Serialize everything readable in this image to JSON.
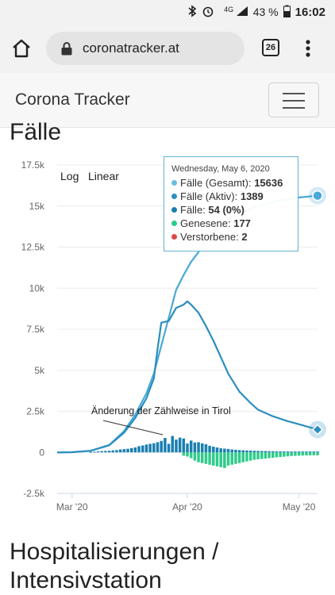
{
  "status_bar": {
    "network": "4G",
    "battery": "43 %",
    "time": "16:02"
  },
  "browser": {
    "url": "coronatracker.at",
    "tab_count": "26"
  },
  "navbar": {
    "brand": "Corona Tracker"
  },
  "section": {
    "partial_title": "Fälle",
    "next_title": "Hospitalisierungen / Intensivstation"
  },
  "chart_controls": {
    "log_label": "Log",
    "linear_label": "Linear"
  },
  "tooltip": {
    "date": "Wednesday, May 6, 2020",
    "rows": [
      {
        "label": "Fälle (Gesamt): ",
        "value": "15636",
        "color": "#6cbce0"
      },
      {
        "label": "Fälle (Aktiv): ",
        "value": "1389",
        "color": "#2b8fbf"
      },
      {
        "label": "Fälle: ",
        "value": "54 (0%)",
        "color": "#1a7fb0"
      },
      {
        "label": "Genesene: ",
        "value": "177",
        "color": "#2ecc8a"
      },
      {
        "label": "Verstorbene: ",
        "value": "2",
        "color": "#e04848"
      }
    ]
  },
  "chart_data": {
    "type": "line",
    "title": "",
    "y_ticks": [
      "17.5k",
      "15k",
      "12.5k",
      "10k",
      "7.5k",
      "5k",
      "2.5k",
      "0",
      "-2.5k"
    ],
    "ylim": [
      -2500,
      17500
    ],
    "x_ticks": [
      {
        "label": "Mar '20",
        "day": 0
      },
      {
        "label": "Apr '20",
        "day": 31
      },
      {
        "label": "May '20",
        "day": 61
      }
    ],
    "x_range_days": [
      -4,
      66
    ],
    "annotation": "Änderung der Zählweise in Tirol",
    "series": [
      {
        "name": "Fälle (Gesamt)",
        "color": "#4aa8d8",
        "type": "line",
        "days": [
          -4,
          0,
          5,
          10,
          14,
          17,
          20,
          22,
          24,
          26,
          28,
          30,
          32,
          34,
          36,
          38,
          40,
          42,
          45,
          50,
          55,
          60,
          66
        ],
        "values": [
          0,
          10,
          100,
          450,
          1300,
          2300,
          3600,
          4800,
          6500,
          8200,
          9900,
          10800,
          11600,
          12200,
          12900,
          13400,
          13800,
          14200,
          14600,
          15000,
          15300,
          15500,
          15636
        ]
      },
      {
        "name": "Fälle (Aktiv)",
        "color": "#2b8fbf",
        "type": "line",
        "days": [
          -4,
          0,
          5,
          10,
          14,
          17,
          20,
          22,
          23,
          24,
          26,
          28,
          30,
          31,
          32,
          34,
          36,
          38,
          40,
          42,
          45,
          48,
          50,
          54,
          58,
          62,
          66
        ],
        "values": [
          0,
          10,
          100,
          430,
          1200,
          2100,
          3300,
          4500,
          6300,
          7900,
          8000,
          8800,
          9000,
          9200,
          9000,
          8500,
          7700,
          6800,
          5800,
          4800,
          3700,
          3000,
          2600,
          2200,
          1900,
          1650,
          1389
        ]
      },
      {
        "name": "Fälle",
        "color": "#1a7fb0",
        "type": "bar",
        "days": [
          5,
          6,
          7,
          8,
          9,
          10,
          11,
          12,
          13,
          14,
          15,
          16,
          17,
          18,
          19,
          20,
          21,
          22,
          23,
          24,
          25,
          26,
          27,
          28,
          29,
          30,
          31,
          32,
          33,
          34,
          35,
          36,
          37,
          38,
          39,
          40,
          41,
          42,
          43,
          44,
          45,
          46,
          47,
          48,
          49,
          50,
          51,
          52,
          53,
          54,
          55,
          56,
          57,
          58,
          59,
          60,
          61,
          62,
          63,
          64,
          65,
          66
        ],
        "values": [
          30,
          40,
          60,
          80,
          90,
          100,
          120,
          140,
          180,
          200,
          220,
          260,
          300,
          380,
          420,
          480,
          520,
          560,
          620,
          700,
          880,
          520,
          1000,
          780,
          900,
          850,
          540,
          720,
          600,
          620,
          550,
          500,
          400,
          350,
          300,
          250,
          230,
          210,
          180,
          160,
          140,
          130,
          120,
          110,
          100,
          90,
          85,
          80,
          75,
          70,
          60,
          58,
          56,
          55,
          54,
          54,
          54,
          54,
          54,
          54,
          54,
          54
        ]
      },
      {
        "name": "Genesene",
        "color": "#2ecc8a",
        "type": "bar",
        "days": [
          30,
          31,
          32,
          33,
          34,
          35,
          36,
          37,
          38,
          39,
          40,
          41,
          42,
          43,
          44,
          45,
          46,
          47,
          48,
          49,
          50,
          51,
          52,
          53,
          54,
          55,
          56,
          57,
          58,
          59,
          60,
          61,
          62,
          63,
          64,
          65,
          66
        ],
        "values": [
          -200,
          -250,
          -350,
          -500,
          -600,
          -650,
          -700,
          -750,
          -800,
          -850,
          -900,
          -950,
          -800,
          -750,
          -700,
          -650,
          -600,
          -550,
          -500,
          -450,
          -420,
          -400,
          -380,
          -350,
          -330,
          -300,
          -280,
          -260,
          -240,
          -220,
          -210,
          -200,
          -190,
          -185,
          -180,
          -178,
          -177
        ]
      }
    ]
  }
}
